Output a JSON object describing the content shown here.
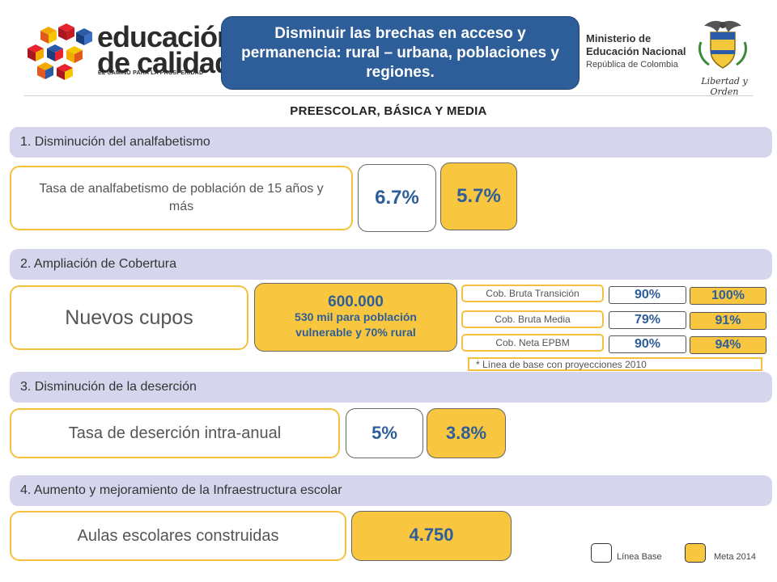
{
  "header": {
    "logo": {
      "word1": "educación",
      "word2": "de calidad",
      "tagline": "EL CAMINO PARA LA PROSPERIDAD"
    },
    "banner_title": "Disminuir las brechas en acceso y permanencia: rural – urbana, poblaciones y regiones.",
    "ministry": {
      "line1": "Ministerio de",
      "line2": "Educación Nacional",
      "line3": "República de Colombia"
    },
    "seal_caption": "Libertad y Orden"
  },
  "subtitle": "PREESCOLAR, BÁSICA Y MEDIA",
  "sections": {
    "s1": {
      "title": "1. Disminución del analfabetismo",
      "label": "Tasa de analfabetismo de población de 15 años y más",
      "base": "6.7%",
      "goal": "5.7%"
    },
    "s2": {
      "title": "2. Ampliación de Cobertura",
      "label": "Nuevos cupos",
      "goal_main": "600.000",
      "goal_sub": "530 mil para población vulnerable y 70% rural",
      "rows": [
        {
          "label": "Cob. Bruta Transición",
          "base": "90%",
          "goal": "100%"
        },
        {
          "label": "Cob. Bruta Media",
          "base": "79%",
          "goal": "91%"
        },
        {
          "label": "Cob. Neta EPBM",
          "base": "90%",
          "goal": "94%"
        }
      ],
      "note": "* Línea de base con proyecciones 2010"
    },
    "s3": {
      "title": "3. Disminución de la deserción",
      "label": "Tasa de deserción intra-anual",
      "base": "5%",
      "goal": "3.8%"
    },
    "s4": {
      "title": "4. Aumento y mejoramiento de la Infraestructura escolar",
      "label": "Aulas escolares construidas",
      "goal": "4.750"
    }
  },
  "legend": {
    "base_label": "Línea Base",
    "goal_label": "Meta 2014"
  },
  "colors": {
    "banner": "#2e5e9a",
    "bar": "#d5d6ee",
    "goal_fill": "#f8c73f",
    "outline": "#f5c13c",
    "value_text": "#2e5e9a"
  }
}
